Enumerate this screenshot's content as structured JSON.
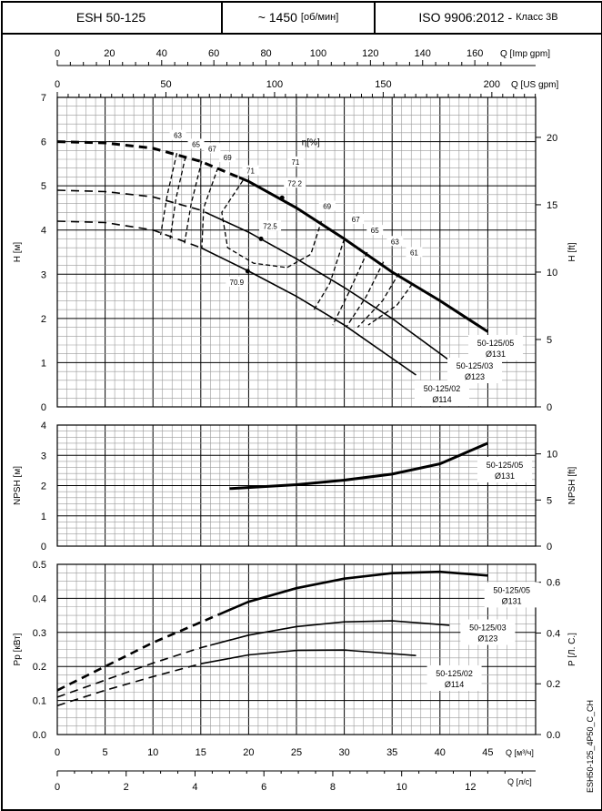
{
  "header": {
    "model": "ESH 50-125",
    "speed": "~ 1450",
    "speed_unit": "[об/мин]",
    "standard": "ISO 9906:2012 -",
    "standard_class": "Класс 3В"
  },
  "code": "ESH50-125_4P50_C_CH",
  "colors": {
    "grid_major": "#000000",
    "grid_minor": "#9a9a9a",
    "curve": "#000000"
  },
  "chart_data": [
    {
      "type": "line",
      "name": "head",
      "xlabel": "Q [м³/ч]",
      "ylabel": "H [м]",
      "ylabel_right": "H [ft]",
      "xlim": [
        0,
        50
      ],
      "ylim": [
        0,
        7
      ],
      "yticks": [
        0,
        1,
        2,
        3,
        4,
        5,
        6,
        7
      ],
      "yticks_right": [
        0,
        5,
        10,
        15,
        20
      ],
      "top_axes": [
        {
          "label": "Q [Imp gpm]",
          "ticks": [
            0,
            20,
            40,
            60,
            80,
            100,
            120,
            140,
            160
          ],
          "per_m3h": 3.666
        },
        {
          "label": "Q [US gpm]",
          "ticks": [
            0,
            50,
            100,
            150,
            200
          ],
          "per_m3h": 4.403
        }
      ],
      "efficiency_title": "η[%]",
      "grid": true,
      "series": [
        {
          "name": "50-125/05",
          "diameter": "Ø131",
          "dashed_until": 19,
          "points": [
            [
              0,
              6.0
            ],
            [
              5,
              5.97
            ],
            [
              10,
              5.85
            ],
            [
              15,
              5.55
            ],
            [
              20,
              5.1
            ],
            [
              25,
              4.5
            ],
            [
              30,
              3.8
            ],
            [
              35,
              3.05
            ],
            [
              40,
              2.4
            ],
            [
              45,
              1.7
            ]
          ]
        },
        {
          "name": "50-125/03",
          "diameter": "Ø123",
          "dashed_until": 16,
          "points": [
            [
              0,
              4.9
            ],
            [
              5,
              4.87
            ],
            [
              10,
              4.75
            ],
            [
              15,
              4.45
            ],
            [
              20,
              3.95
            ],
            [
              25,
              3.35
            ],
            [
              30,
              2.7
            ],
            [
              35,
              2.0
            ],
            [
              41,
              1.05
            ]
          ]
        },
        {
          "name": "50-125/02",
          "diameter": "Ø114",
          "dashed_until": 15,
          "points": [
            [
              0,
              4.2
            ],
            [
              5,
              4.17
            ],
            [
              10,
              4.0
            ],
            [
              15,
              3.6
            ],
            [
              20,
              3.07
            ],
            [
              25,
              2.5
            ],
            [
              30,
              1.85
            ],
            [
              37.5,
              0.72
            ]
          ]
        }
      ],
      "bep_points": [
        {
          "label": "72.2",
          "q": 23.5,
          "h": 4.73
        },
        {
          "label": "72.5",
          "q": 21.3,
          "h": 3.8
        },
        {
          "label": "70.9",
          "q": 19.9,
          "h": 3.07
        }
      ],
      "efficiency_lines": [
        {
          "label": "63",
          "points": [
            [
              12.5,
              5.74
            ],
            [
              11.5,
              4.8
            ],
            [
              10.8,
              3.89
            ]
          ]
        },
        {
          "label": "65",
          "points": [
            [
              13.4,
              5.66
            ],
            [
              12.4,
              4.7
            ],
            [
              11.8,
              3.8
            ]
          ]
        },
        {
          "label": "67",
          "points": [
            [
              15.1,
              5.56
            ],
            [
              14,
              4.6
            ],
            [
              13.3,
              3.7
            ]
          ]
        },
        {
          "label": "69",
          "points": [
            [
              16.8,
              5.41
            ],
            [
              15.3,
              4.5
            ],
            [
              15.1,
              3.58
            ]
          ]
        },
        {
          "label": "71",
          "points": [
            [
              19.4,
              5.12
            ],
            [
              17.2,
              4.4
            ],
            [
              17.8,
              3.6
            ],
            [
              20.5,
              3.25
            ],
            [
              24,
              3.15
            ],
            [
              26.5,
              3.45
            ],
            [
              27.6,
              4.2
            ]
          ]
        },
        {
          "label": "71",
          "points": []
        },
        {
          "label": "69",
          "points": [
            [
              30,
              3.8
            ],
            [
              28.5,
              2.8
            ],
            [
              26.7,
              2.15
            ]
          ]
        },
        {
          "label": "67",
          "points": [
            [
              32.4,
              3.5
            ],
            [
              30.5,
              2.6
            ],
            [
              28.8,
              1.85
            ]
          ]
        },
        {
          "label": "65",
          "points": [
            [
              34.1,
              3.28
            ],
            [
              32.3,
              2.5
            ],
            [
              30.2,
              1.8
            ]
          ]
        },
        {
          "label": "63",
          "points": [
            [
              35.7,
              3.02
            ],
            [
              34,
              2.4
            ],
            [
              31.4,
              1.8
            ]
          ]
        },
        {
          "label": "61",
          "points": [
            [
              37.1,
              2.78
            ],
            [
              35.5,
              2.3
            ],
            [
              32.5,
              1.85
            ]
          ]
        }
      ],
      "efficiency_label_positions": [
        [
          12.6,
          6.1
        ],
        [
          14.5,
          5.9
        ],
        [
          16.2,
          5.8
        ],
        [
          17.8,
          5.6
        ],
        [
          20.2,
          5.3
        ],
        [
          24.9,
          5.5
        ],
        [
          28.2,
          4.5
        ],
        [
          31.2,
          4.2
        ],
        [
          33.2,
          3.95
        ],
        [
          35.3,
          3.7
        ],
        [
          37.3,
          3.45
        ],
        [
          39.1,
          3.2
        ]
      ],
      "title_position": [
        26.5,
        6.0
      ]
    },
    {
      "type": "line",
      "name": "npsh",
      "ylabel": "NPSH [м]",
      "ylabel_right": "NPSH [ft]",
      "xlim": [
        0,
        50
      ],
      "ylim": [
        0,
        4
      ],
      "yticks": [
        0,
        1,
        2,
        3,
        4
      ],
      "yticks_right": [
        0,
        5,
        10
      ],
      "grid": true,
      "series": [
        {
          "name": "50-125/05",
          "diameter": "Ø131",
          "points": [
            [
              18,
              1.9
            ],
            [
              25,
              2.03
            ],
            [
              30,
              2.18
            ],
            [
              35,
              2.38
            ],
            [
              40,
              2.72
            ],
            [
              45,
              3.4
            ]
          ]
        }
      ]
    },
    {
      "type": "line",
      "name": "power",
      "ylabel": "Pp [кВт]",
      "ylabel_right": "P [Л. С.]",
      "ylabel_right_sub": "p",
      "xlabel": "Q [м³/ч]",
      "xlim": [
        0,
        50
      ],
      "ylim": [
        0,
        0.5
      ],
      "xticks": [
        0,
        5,
        10,
        15,
        20,
        25,
        30,
        35,
        40,
        45
      ],
      "yticks": [
        "0.0",
        "0.1",
        "0.2",
        "0.3",
        "0.4",
        "0.5"
      ],
      "yticks_right": [
        "0.0",
        "0.2",
        "0.4",
        "0.6"
      ],
      "bottom_axis": {
        "label": "Q [л/с]",
        "ticks": [
          0,
          2,
          4,
          6,
          8,
          10,
          12
        ],
        "per_m3h": 0.2778
      },
      "grid": true,
      "series": [
        {
          "name": "50-125/05",
          "diameter": "Ø131",
          "dashed_until": 17,
          "points": [
            [
              0,
              0.13
            ],
            [
              5,
              0.2
            ],
            [
              10,
              0.27
            ],
            [
              15,
              0.33
            ],
            [
              20,
              0.39
            ],
            [
              25,
              0.43
            ],
            [
              30,
              0.458
            ],
            [
              35,
              0.474
            ],
            [
              40,
              0.478
            ],
            [
              45,
              0.467
            ]
          ]
        },
        {
          "name": "50-125/03",
          "diameter": "Ø123",
          "dashed_until": 16,
          "points": [
            [
              0,
              0.11
            ],
            [
              5,
              0.16
            ],
            [
              10,
              0.21
            ],
            [
              15,
              0.255
            ],
            [
              20,
              0.292
            ],
            [
              25,
              0.317
            ],
            [
              30,
              0.331
            ],
            [
              35,
              0.334
            ],
            [
              41,
              0.321
            ]
          ]
        },
        {
          "name": "50-125/02",
          "diameter": "Ø114",
          "dashed_until": 15,
          "points": [
            [
              0,
              0.085
            ],
            [
              5,
              0.13
            ],
            [
              10,
              0.17
            ],
            [
              15,
              0.208
            ],
            [
              20,
              0.234
            ],
            [
              25,
              0.247
            ],
            [
              30,
              0.248
            ],
            [
              37.5,
              0.232
            ]
          ]
        }
      ],
      "curve_label_positions": [
        [
          47.5,
          0.4
        ],
        [
          45,
          0.29
        ],
        [
          41.5,
          0.155
        ]
      ]
    }
  ]
}
